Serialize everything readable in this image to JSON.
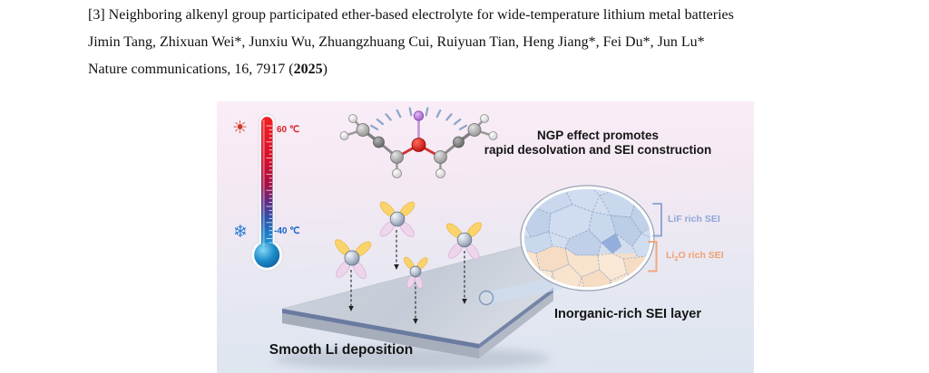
{
  "citation": {
    "line1": "[3] Neighboring alkenyl group participated ether-based electrolyte for wide-temperature lithium metal batteries",
    "line2": "Jimin Tang, Zhixuan Wei*, Junxiu Wu, Zhuangzhuang Cui, Ruiyuan Tian, Heng Jiang*, Fei Du*, Jun Lu*",
    "line3_pre": "Nature communications, 16, 7917 (",
    "line3_bold": "2025",
    "line3_post": ")"
  },
  "figure": {
    "thermometer": {
      "hot_label": "60 ℃",
      "cold_label": "-40 ℃",
      "hot_color": "#d8232a",
      "cold_color": "#1565c8",
      "sun_icon": "☀",
      "snowflake_icon": "❄"
    },
    "ngp_title_line1": "NGP effect promotes",
    "ngp_title_line2": "rapid desolvation and SEI construction",
    "sei": {
      "lif_label": "LiF rich SEI",
      "lif_color": "#8ea6d8",
      "li2o_pre": "Li",
      "li2o_sub": "2",
      "li2o_post": "O rich SEI",
      "li2o_color": "#f0a071"
    },
    "inorganic_label": "Inorganic-rich SEI layer",
    "smooth_label": "Smooth Li deposition",
    "palette": {
      "lif_crystal_blue": "#c9d8ed",
      "li2o_crystal_peach": "#f8e3cd",
      "slab_gray": "#c8ced9",
      "wing_yellow": "#fbd264",
      "wing_pink": "#eed6ec"
    }
  }
}
